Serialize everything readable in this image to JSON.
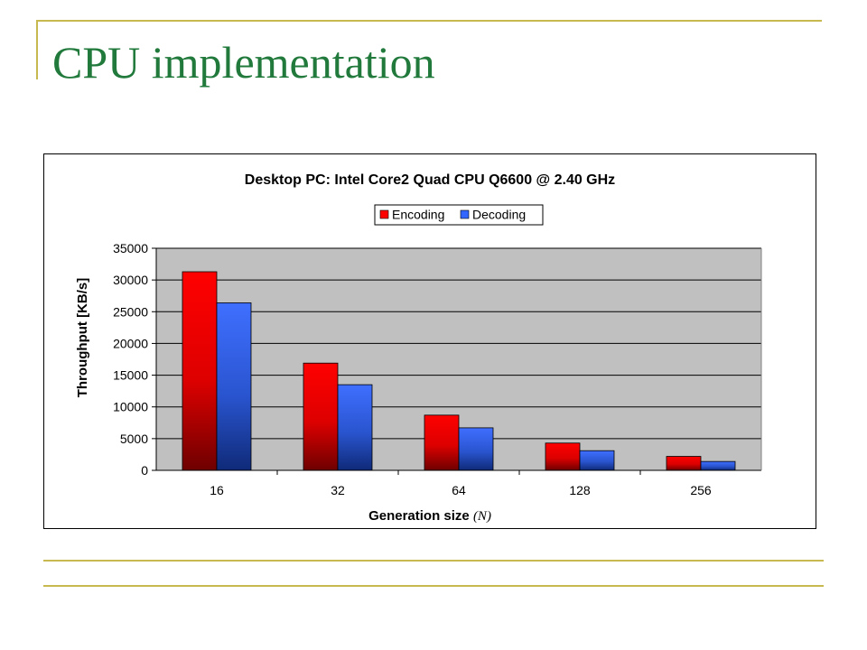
{
  "slide": {
    "title": "CPU implementation"
  },
  "colors": {
    "title": "#217a3c",
    "decoration": "#c8b850",
    "plot_background": "#c0c0c0",
    "encoding": "#ff0000",
    "decoding": "#3366ff"
  },
  "chart_data": {
    "type": "bar",
    "title": "Desktop PC: Intel Core2 Quad CPU Q6600 @ 2.40 GHz",
    "xlabel_main": "Generation size ",
    "xlabel_var": "(N)",
    "ylabel": "Throughput [KB/s]",
    "categories": [
      "16",
      "32",
      "64",
      "128",
      "256"
    ],
    "ylim": [
      0,
      35000
    ],
    "yticks": [
      0,
      5000,
      10000,
      15000,
      20000,
      25000,
      30000,
      35000
    ],
    "grid": true,
    "legend_position": "top-center",
    "series": [
      {
        "name": "Encoding",
        "color": "#ff0000",
        "values": [
          31300,
          16900,
          8700,
          4300,
          2200
        ]
      },
      {
        "name": "Decoding",
        "color": "#3366ff",
        "values": [
          26400,
          13500,
          6700,
          3100,
          1400
        ]
      }
    ]
  }
}
